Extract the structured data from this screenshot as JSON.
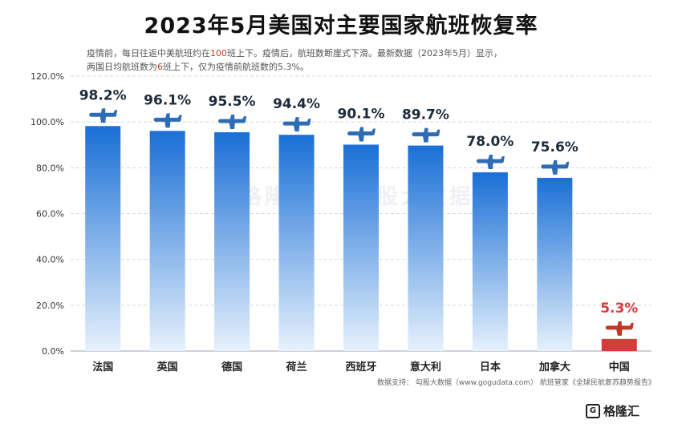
{
  "title": "2023年5月美国对主要国家航班恢复率",
  "subtitle": {
    "line1_a": "疫情前，每日往返中美航班约在",
    "line1_hl": "100",
    "line1_b": "班上下。疫情后，航班数断崖式下滑。最新数据（2023年5月）显示，",
    "line2_a": "两国日均航班数为",
    "line2_hl": "6",
    "line2_b": "班上下，仅为疫情前航班数的5.3%。"
  },
  "source": "数据支持：   勾股大数据（www.gogudata.com）  航班管家《全球民航复苏趋势报告》",
  "brand": "格隆汇",
  "watermarks": [
    "格隆汇",
    "勾股大数据"
  ],
  "colors": {
    "bar_top": "#1a6fd6",
    "bar_bottom": "#e6f1fc",
    "highlight_bar": "#d93a3a",
    "highlight_label": "#d93a3a",
    "plane": "#2e6db4",
    "plane_highlight": "#c0392b"
  },
  "chart_data": {
    "type": "bar",
    "categories": [
      "法国",
      "英国",
      "德国",
      "荷兰",
      "西班牙",
      "意大利",
      "日本",
      "加拿大",
      "中国"
    ],
    "values": [
      98.2,
      96.1,
      95.5,
      94.4,
      90.1,
      89.7,
      78.0,
      75.6,
      5.3
    ],
    "value_labels": [
      "98.2%",
      "96.1%",
      "95.5%",
      "94.4%",
      "90.1%",
      "89.7%",
      "78.0%",
      "75.6%",
      "5.3%"
    ],
    "highlight_index": 8,
    "yticks": [
      "0.0%",
      "20.0%",
      "40.0%",
      "60.0%",
      "80.0%",
      "100.0%",
      "120.0%"
    ],
    "ylim": [
      0,
      120
    ],
    "grid": true,
    "icon": "airplane-icon"
  }
}
